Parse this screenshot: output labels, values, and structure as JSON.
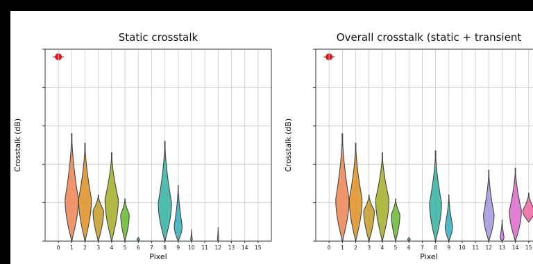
{
  "chart_data": [
    {
      "type": "violin",
      "title": "Static crosstalk",
      "xlabel": "Pixel",
      "ylabel": "Crosstalk (dB)",
      "categories": [
        "0",
        "1",
        "2",
        "3",
        "4",
        "5",
        "6",
        "7",
        "8",
        "9",
        "10",
        "11",
        "12",
        "13",
        "14",
        "15"
      ],
      "ylim": [
        0,
        100
      ],
      "grid": true,
      "reference": {
        "pixel": 0,
        "value": 96,
        "marker": "red-crosshair-dot"
      },
      "violins": [
        {
          "pixel": 1,
          "color": "#f08a5d",
          "min": 0,
          "max": 56,
          "peak": 22,
          "halfwidth": 0.5
        },
        {
          "pixel": 2,
          "color": "#e0952c",
          "min": 0,
          "max": 51,
          "peak": 22,
          "halfwidth": 0.48
        },
        {
          "pixel": 3,
          "color": "#c8a132",
          "min": 0,
          "max": 24,
          "peak": 16,
          "halfwidth": 0.4
        },
        {
          "pixel": 4,
          "color": "#a8b233",
          "min": 0,
          "max": 46,
          "peak": 22,
          "halfwidth": 0.5
        },
        {
          "pixel": 5,
          "color": "#6fbd3b",
          "min": 0,
          "max": 22,
          "peak": 14,
          "halfwidth": 0.32
        },
        {
          "pixel": 6,
          "color": "#3fb57b",
          "min": 0,
          "max": 2,
          "peak": 1,
          "halfwidth": 0.1
        },
        {
          "pixel": 8,
          "color": "#3cb6a7",
          "min": 0,
          "max": 52,
          "peak": 20,
          "halfwidth": 0.5
        },
        {
          "pixel": 9,
          "color": "#3cb2c0",
          "min": 0,
          "max": 29,
          "peak": 8,
          "halfwidth": 0.3
        },
        {
          "pixel": 10,
          "color": "#5ca8d6",
          "min": 0,
          "max": 6,
          "peak": 1,
          "halfwidth": 0.06
        },
        {
          "pixel": 12,
          "color": "#a89ae0",
          "min": 0,
          "max": 7,
          "peak": 1,
          "halfwidth": 0.05
        }
      ]
    },
    {
      "type": "violin",
      "title": "Overall crosstalk (static + transient",
      "xlabel": "Pixel",
      "ylabel": "Crosstalk (dB)",
      "categories": [
        "0",
        "1",
        "2",
        "3",
        "4",
        "5",
        "6",
        "7",
        "8",
        "9",
        "10",
        "11",
        "12",
        "13",
        "14",
        "15"
      ],
      "ylim": [
        0,
        100
      ],
      "grid": true,
      "reference": {
        "pixel": 0,
        "value": 96,
        "marker": "red-crosshair-dot"
      },
      "violins": [
        {
          "pixel": 1,
          "color": "#f08a5d",
          "min": 0,
          "max": 56,
          "peak": 22,
          "halfwidth": 0.5
        },
        {
          "pixel": 2,
          "color": "#e0952c",
          "min": 0,
          "max": 51,
          "peak": 22,
          "halfwidth": 0.48
        },
        {
          "pixel": 3,
          "color": "#c8a132",
          "min": 0,
          "max": 24,
          "peak": 16,
          "halfwidth": 0.4
        },
        {
          "pixel": 4,
          "color": "#a8b233",
          "min": 0,
          "max": 46,
          "peak": 22,
          "halfwidth": 0.5
        },
        {
          "pixel": 5,
          "color": "#6fbd3b",
          "min": 0,
          "max": 22,
          "peak": 14,
          "halfwidth": 0.32
        },
        {
          "pixel": 6,
          "color": "#3fb57b",
          "min": 0,
          "max": 2,
          "peak": 1,
          "halfwidth": 0.1
        },
        {
          "pixel": 8,
          "color": "#3cb6a7",
          "min": 0,
          "max": 47,
          "peak": 20,
          "halfwidth": 0.45
        },
        {
          "pixel": 9,
          "color": "#3cb2c0",
          "min": 0,
          "max": 24,
          "peak": 8,
          "halfwidth": 0.28
        },
        {
          "pixel": 12,
          "color": "#a89ae0",
          "min": 0,
          "max": 37,
          "peak": 14,
          "halfwidth": 0.4
        },
        {
          "pixel": 13,
          "color": "#c57ae0",
          "min": 0,
          "max": 11,
          "peak": 2,
          "halfwidth": 0.15
        },
        {
          "pixel": 14,
          "color": "#e070d0",
          "min": 0,
          "max": 38,
          "peak": 16,
          "halfwidth": 0.45
        },
        {
          "pixel": 15,
          "color": "#ee6fa5",
          "min": 10,
          "max": 25,
          "peak": 16,
          "halfwidth": 0.45
        }
      ]
    }
  ]
}
